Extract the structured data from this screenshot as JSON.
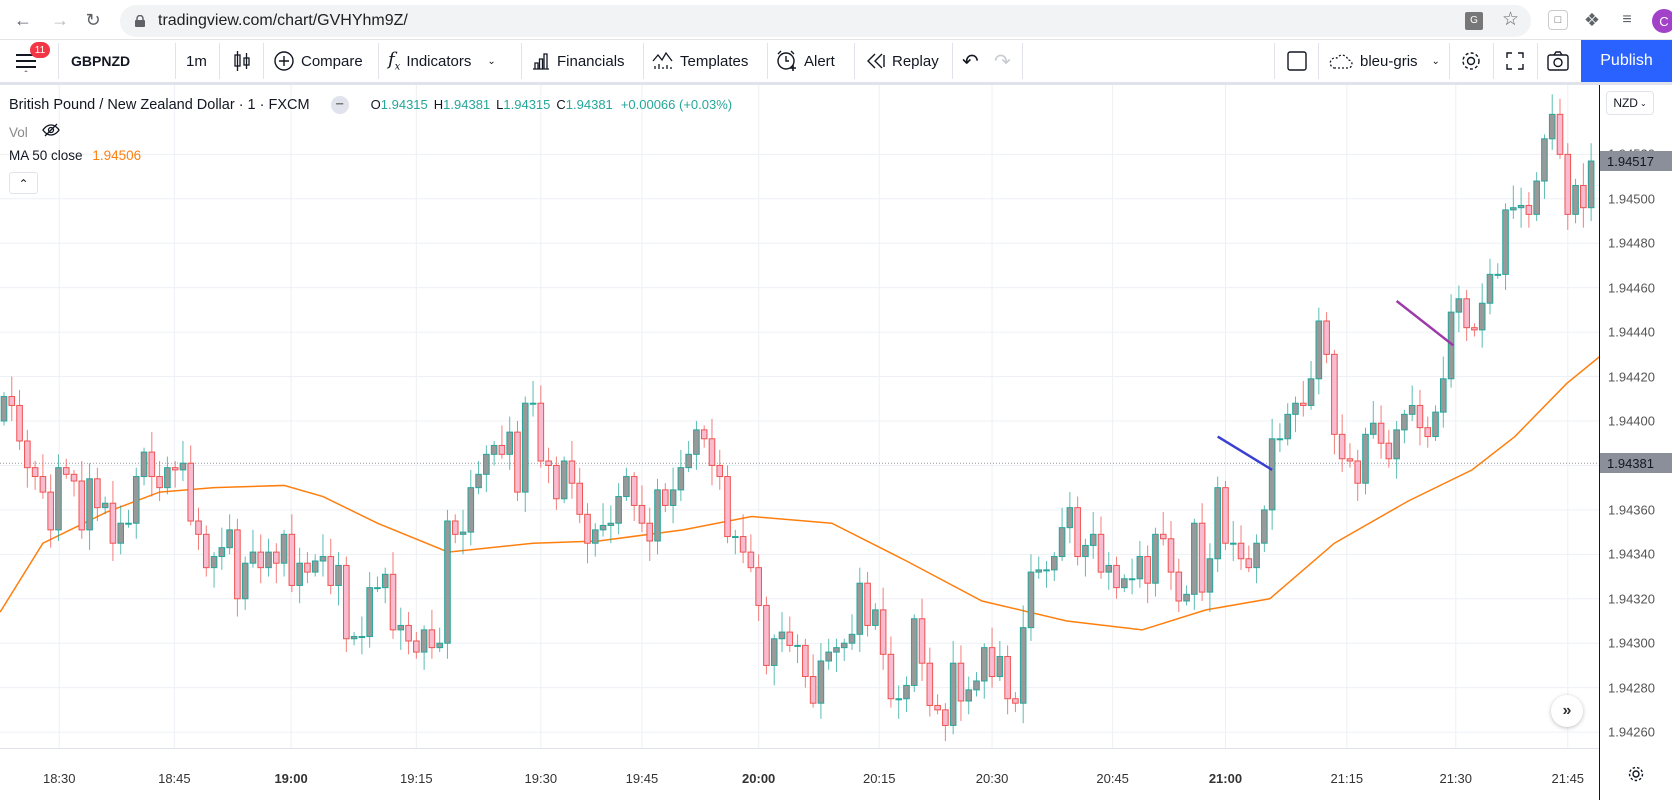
{
  "browser": {
    "url": "tradingview.com/chart/GVHYhm9Z/",
    "avatar_letter": "C"
  },
  "toolbar": {
    "menu_badge": "11",
    "symbol": "GBPNZD",
    "interval": "1m",
    "compare": "Compare",
    "indicators": "Indicators",
    "financials": "Financials",
    "templates": "Templates",
    "alert": "Alert",
    "replay": "Replay",
    "layout_name": "bleu-gris",
    "publish": "Publish"
  },
  "legend": {
    "title": "British Pound / New Zealand Dollar · 1 · FXCM",
    "ohlc": [
      {
        "k": "O",
        "v": "1.94315"
      },
      {
        "k": "H",
        "v": "1.94381"
      },
      {
        "k": "L",
        "v": "1.94315"
      },
      {
        "k": "C",
        "v": "1.94381"
      }
    ],
    "change": "+0.00066 (+0.03%)",
    "vol_label": "Vol",
    "ma_label": "MA 50 close",
    "ma_value": "1.94506"
  },
  "currency_button": "NZD",
  "colors": {
    "bull_body": "#999999",
    "bull_border": "#26a69a",
    "bear_body": "#f8bbd0",
    "bear_border": "#ef5350",
    "ma": "#ff7f0e",
    "accent": "#2962ff",
    "legend_value": "#26a69a"
  },
  "chart_data": {
    "type": "candlestick",
    "symbol": "GBPNZD",
    "price_base": 1.94,
    "price_unit": 1e-05,
    "ylim_units": [
      253,
      551
    ],
    "y_tick_labels": [
      "1.94520",
      "1.94500",
      "1.94480",
      "1.94460",
      "1.94440",
      "1.94420",
      "1.94400",
      "1.94380",
      "1.94360",
      "1.94340",
      "1.94320",
      "1.94300",
      "1.94280",
      "1.94260"
    ],
    "y_tick_units": [
      520,
      500,
      480,
      460,
      440,
      420,
      400,
      380,
      360,
      340,
      320,
      300,
      280,
      260
    ],
    "price_boxes": [
      {
        "label": "1.94517",
        "units": 517
      },
      {
        "label": "1.94381",
        "units": 381
      }
    ],
    "price_line_units": 381,
    "x_labels": [
      {
        "t": "18:30",
        "i": 7.1,
        "bold": false
      },
      {
        "t": "18:45",
        "i": 21.9,
        "bold": false
      },
      {
        "t": "19:00",
        "i": 36.9,
        "bold": true
      },
      {
        "t": "19:15",
        "i": 53,
        "bold": false
      },
      {
        "t": "19:30",
        "i": 69,
        "bold": false
      },
      {
        "t": "19:45",
        "i": 82,
        "bold": false
      },
      {
        "t": "20:00",
        "i": 97,
        "bold": true
      },
      {
        "t": "20:15",
        "i": 112.5,
        "bold": false
      },
      {
        "t": "20:30",
        "i": 127,
        "bold": false
      },
      {
        "t": "20:45",
        "i": 142.5,
        "bold": false
      },
      {
        "t": "21:00",
        "i": 157,
        "bold": true
      },
      {
        "t": "21:15",
        "i": 172.6,
        "bold": false
      },
      {
        "t": "21:30",
        "i": 186.6,
        "bold": false
      },
      {
        "t": "21:45",
        "i": 201,
        "bold": false
      }
    ],
    "open": [
      400,
      411,
      407,
      391,
      379,
      375,
      368,
      351,
      379,
      376,
      373,
      351,
      374,
      361,
      363,
      345,
      354,
      354,
      375,
      386,
      375,
      370,
      379,
      378,
      381,
      355,
      349,
      334,
      339,
      343,
      351,
      320,
      336,
      341,
      334,
      341,
      336,
      349,
      326,
      336,
      332,
      337,
      339,
      326,
      335,
      302,
      303,
      303,
      325,
      325,
      331,
      306,
      308,
      301,
      296,
      306,
      298,
      300,
      355,
      349,
      350,
      370,
      376,
      385,
      389,
      385,
      395,
      368,
      408,
      408,
      382,
      380,
      365,
      382,
      372,
      358,
      345,
      351,
      353,
      354,
      366,
      375,
      362,
      354,
      346,
      369,
      362,
      369,
      379,
      385,
      396,
      392,
      380,
      375,
      348,
      348,
      341,
      334,
      317,
      290,
      302,
      305,
      299,
      299,
      285,
      273,
      292,
      296,
      298,
      300,
      304,
      327,
      308,
      315,
      295,
      275,
      275,
      281,
      311,
      291,
      272,
      270,
      263,
      291,
      274,
      279,
      283,
      298,
      285,
      294,
      275,
      273,
      307,
      332,
      333,
      333,
      339,
      352,
      361,
      339,
      344,
      349,
      332,
      335,
      325,
      329,
      329,
      339,
      327,
      349,
      347,
      332,
      319,
      322,
      354,
      323,
      338,
      370,
      345,
      345,
      338,
      334,
      345,
      360,
      392,
      392,
      403,
      408,
      407,
      419,
      445,
      430,
      394,
      383,
      382,
      372,
      394,
      399,
      390,
      383,
      396,
      403,
      407,
      397,
      393,
      404,
      419,
      449,
      455,
      442,
      441,
      453,
      466,
      466,
      495,
      496,
      497,
      493,
      508,
      527,
      538,
      520,
      493,
      506,
      496
    ],
    "close": [
      411,
      407,
      391,
      379,
      375,
      368,
      351,
      379,
      376,
      373,
      351,
      374,
      361,
      363,
      345,
      354,
      354,
      375,
      386,
      375,
      370,
      379,
      378,
      381,
      355,
      349,
      334,
      339,
      343,
      351,
      320,
      336,
      341,
      334,
      341,
      336,
      349,
      326,
      336,
      332,
      337,
      339,
      326,
      335,
      302,
      303,
      303,
      325,
      325,
      331,
      306,
      308,
      301,
      296,
      306,
      298,
      300,
      355,
      349,
      350,
      370,
      376,
      385,
      389,
      385,
      395,
      368,
      408,
      408,
      382,
      380,
      365,
      382,
      372,
      358,
      345,
      351,
      353,
      354,
      366,
      375,
      362,
      354,
      346,
      369,
      362,
      369,
      379,
      385,
      396,
      392,
      380,
      375,
      348,
      348,
      341,
      334,
      317,
      290,
      302,
      305,
      299,
      299,
      285,
      273,
      292,
      296,
      298,
      300,
      304,
      327,
      308,
      315,
      295,
      275,
      275,
      281,
      311,
      291,
      272,
      270,
      263,
      291,
      274,
      279,
      283,
      298,
      285,
      294,
      275,
      273,
      307,
      332,
      333,
      333,
      339,
      352,
      361,
      339,
      344,
      349,
      332,
      335,
      325,
      329,
      329,
      339,
      327,
      349,
      347,
      332,
      319,
      322,
      354,
      323,
      338,
      370,
      345,
      345,
      338,
      334,
      345,
      360,
      392,
      392,
      403,
      408,
      407,
      419,
      445,
      430,
      394,
      383,
      382,
      372,
      394,
      399,
      390,
      383,
      396,
      403,
      407,
      397,
      393,
      404,
      419,
      449,
      455,
      442,
      441,
      453,
      466,
      466,
      495,
      496,
      497,
      493,
      508,
      527,
      538,
      520,
      493,
      506,
      496,
      517
    ],
    "ma50": [
      [
        -0.5,
        314
      ],
      [
        5,
        345
      ],
      [
        13.2,
        359
      ],
      [
        20,
        368
      ],
      [
        27,
        370
      ],
      [
        36,
        371
      ],
      [
        41,
        366
      ],
      [
        48,
        354
      ],
      [
        57.1,
        341
      ],
      [
        68,
        345
      ],
      [
        76.4,
        346
      ],
      [
        87.3,
        351
      ],
      [
        96.1,
        357
      ],
      [
        106.4,
        354
      ],
      [
        116,
        337
      ],
      [
        125.7,
        319
      ],
      [
        136.6,
        310
      ],
      [
        146.3,
        306
      ],
      [
        154.5,
        315
      ],
      [
        162.7,
        320
      ],
      [
        171,
        345
      ],
      [
        180.5,
        364
      ],
      [
        188.7,
        378
      ],
      [
        194.2,
        393
      ],
      [
        200.9,
        417
      ],
      [
        205.1,
        429
      ]
    ],
    "drawings": [
      {
        "name": "blue-trend-line",
        "color": "#3a3fd0",
        "from": [
          156,
          393
        ],
        "to": [
          163,
          378
        ]
      },
      {
        "name": "purple-trend-line",
        "color": "#9c3aa8",
        "from": [
          179,
          454
        ],
        "to": [
          186.3,
          434
        ]
      }
    ]
  }
}
